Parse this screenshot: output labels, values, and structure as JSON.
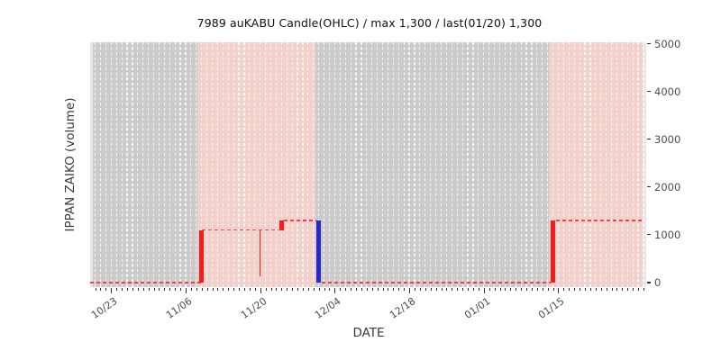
{
  "chart_data": {
    "type": "candlestick",
    "title": "7989 auKABU Candle(OHLC) / max 1,300 / last(01/20) 1,300",
    "xlabel": "DATE",
    "ylabel": "IPPAN ZAIKO (volume)",
    "x_tick_labels": [
      "10/23",
      "11/06",
      "11/20",
      "12/04",
      "12/18",
      "01/01",
      "01/15"
    ],
    "x_tick_day_offsets": [
      0,
      14,
      28,
      42,
      56,
      70,
      84
    ],
    "x_minor_tick_every_days": 1,
    "x_range_days": [
      -3.9,
      99.8
    ],
    "y_ticks": [
      0,
      1000,
      2000,
      3000,
      4000,
      5000
    ],
    "y_axis_side": "right",
    "ylim": [
      -90,
      5040
    ],
    "grid": "vertical daily dashed white lines, no horizontal grid",
    "legend": null,
    "max_value": 1300,
    "last_label": "last(01/20) 1,300",
    "candles": [
      {
        "date": "11/09",
        "day": 17,
        "open": 0,
        "close": 1100,
        "low": 0,
        "high": 1100,
        "direction": "up",
        "style": "body"
      },
      {
        "date": "11/20",
        "day": 28,
        "open": 1100,
        "close": 1100,
        "low": 130,
        "high": 1100,
        "direction": "up",
        "style": "wick-only"
      },
      {
        "date": "11/24",
        "day": 32,
        "open": 1100,
        "close": 1300,
        "low": 1100,
        "high": 1300,
        "direction": "up",
        "style": "body"
      },
      {
        "date": "12/01",
        "day": 39,
        "open": 1300,
        "close": 0,
        "low": 0,
        "high": 1300,
        "direction": "down",
        "style": "body"
      },
      {
        "date": "01/14",
        "day": 83,
        "open": 0,
        "close": 1300,
        "low": 0,
        "high": 1300,
        "direction": "up",
        "style": "body"
      }
    ],
    "step_line_segments": [
      {
        "level": 0,
        "from_day": -3.9,
        "to_day": 17.0
      },
      {
        "level": 1100,
        "from_day": 17.0,
        "to_day": 31.5
      },
      {
        "level": 1300,
        "from_day": 32.5,
        "to_day": 38.5
      },
      {
        "level": 0,
        "from_day": 39.6,
        "to_day": 82.5
      },
      {
        "level": 1300,
        "from_day": 83.5,
        "to_day": 99.8
      }
    ],
    "bands": [
      {
        "from_day": -3.4,
        "to_day": 99.8,
        "color_key": "band_gray",
        "meaning": "full-range backdrop"
      },
      {
        "from_day": 16.25,
        "to_day": 38.3,
        "color_key": "band_pink",
        "meaning": "in-stock period"
      },
      {
        "from_day": 82.3,
        "to_day": 99.8,
        "color_key": "band_pink",
        "meaning": "in-stock period"
      }
    ],
    "colors": {
      "up": "#f71c1c",
      "down": "#2727cc",
      "step_line": "#f94040",
      "band_gray": "#cbcbcb",
      "band_pink": "#f2d0cc",
      "axes_bg": "#e7e7e7",
      "grid": "#ffffff",
      "tick_text": "#4d4d4d",
      "title_text": "#111111"
    }
  }
}
